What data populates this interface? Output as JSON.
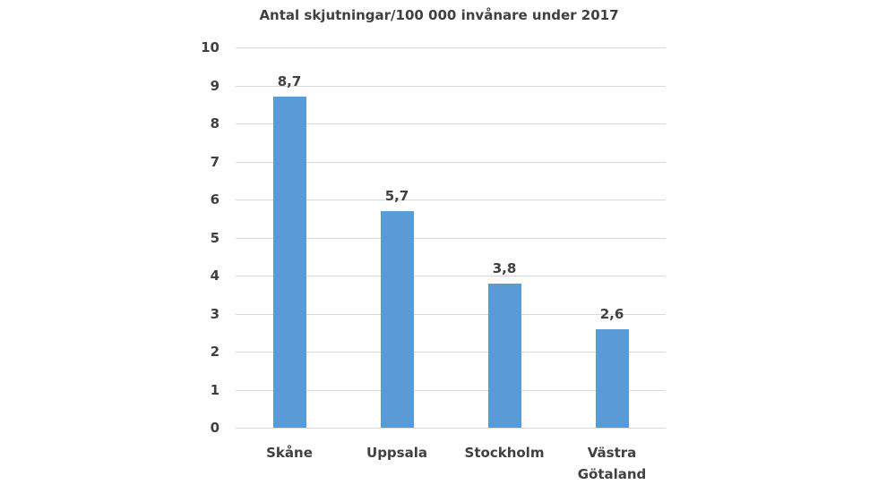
{
  "chart_data": {
    "type": "bar",
    "title": "Antal skjutningar/100 000 invånare under 2017",
    "categories": [
      "Skåne",
      "Uppsala",
      "Stockholm",
      "Västra Götaland"
    ],
    "category_lines": [
      [
        "Skåne"
      ],
      [
        "Uppsala"
      ],
      [
        "Stockholm"
      ],
      [
        "Västra",
        "Götaland"
      ]
    ],
    "values": [
      8.7,
      5.7,
      3.8,
      2.6
    ],
    "data_labels": [
      "8,7",
      "5,7",
      "3,8",
      "2,6"
    ],
    "xlabel": "",
    "ylabel": "",
    "ylim": [
      0,
      10
    ],
    "yticks": [
      "0",
      "1",
      "2",
      "3",
      "4",
      "5",
      "6",
      "7",
      "8",
      "9",
      "10"
    ],
    "grid": true,
    "legend": null,
    "bar_color": "#5b9bd5"
  }
}
